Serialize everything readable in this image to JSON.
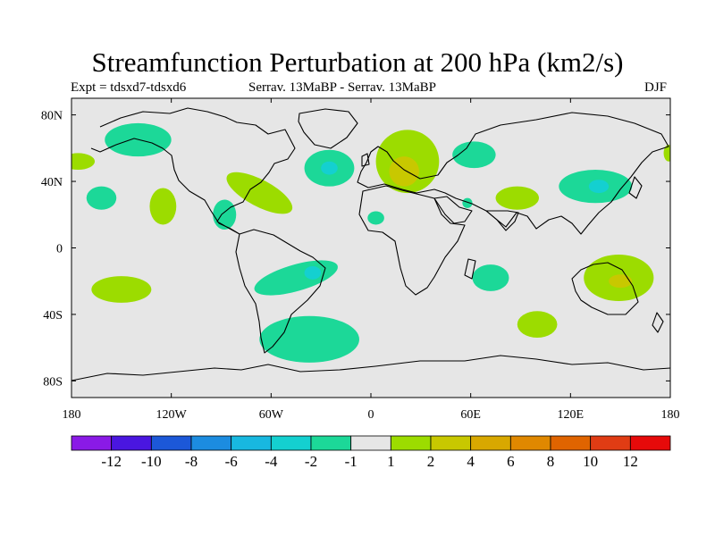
{
  "title": "Streamfunction Perturbation at 200 hPa (km2/s)",
  "subtitle_left": "Expt = tdsxd7-tdsxd6",
  "subtitle_center": "Serrav.   13MaBP - Serrav.   13MaBP",
  "subtitle_right": "DJF",
  "chart_data": {
    "type": "heatmap",
    "title": "Streamfunction Perturbation at 200 hPa (km2/s)",
    "map": "world, cylindrical equidistant",
    "xlim": [
      -180,
      180
    ],
    "ylim": [
      -90,
      90
    ],
    "x_ticks": [
      {
        "lon": -180,
        "label": "180"
      },
      {
        "lon": -120,
        "label": "120W"
      },
      {
        "lon": -60,
        "label": "60W"
      },
      {
        "lon": 0,
        "label": "0"
      },
      {
        "lon": 60,
        "label": "60E"
      },
      {
        "lon": 120,
        "label": "120E"
      },
      {
        "lon": 180,
        "label": "180"
      }
    ],
    "y_ticks": [
      {
        "lat": 80,
        "label": "80N"
      },
      {
        "lat": 40,
        "label": "40N"
      },
      {
        "lat": 0,
        "label": "0"
      },
      {
        "lat": -40,
        "label": "40S"
      },
      {
        "lat": -80,
        "label": "80S"
      }
    ],
    "colorbar": {
      "colors": [
        "#8a1ae6",
        "#4a16e0",
        "#1c58d8",
        "#1c8ce0",
        "#18b8e0",
        "#14d0d0",
        "#1cd898",
        "#e6e6e6",
        "#9cdc00",
        "#c8c800",
        "#d8a800",
        "#e08800",
        "#e06400",
        "#e03c14",
        "#e60a0a"
      ],
      "labels": [
        "-12",
        "-10",
        "-8",
        "-6",
        "-4",
        "-2",
        "-1",
        "1",
        "2",
        "4",
        "6",
        "8",
        "10",
        "12"
      ]
    },
    "anomalies": [
      {
        "lon": -140,
        "lat": 65,
        "rlon": 20,
        "rlat": 10,
        "level": -1
      },
      {
        "lon": -176,
        "lat": 52,
        "rlon": 10,
        "rlat": 5,
        "level": 1
      },
      {
        "lon": -162,
        "lat": 30,
        "rlon": 9,
        "rlat": 7,
        "level": -1
      },
      {
        "lon": -125,
        "lat": 25,
        "rlon": 8,
        "rlat": 11,
        "level": 1
      },
      {
        "lon": -88,
        "lat": 20,
        "rlon": 7,
        "rlat": 9,
        "level": -1
      },
      {
        "lon": -67,
        "lat": 33,
        "rlon": 22,
        "rlat": 8,
        "level": 1,
        "rot": 28
      },
      {
        "lon": -25,
        "lat": 48,
        "rlon": 15,
        "rlat": 11,
        "level": -1
      },
      {
        "lon": -25,
        "lat": 48,
        "rlon": 5,
        "rlat": 4,
        "level": -2
      },
      {
        "lon": 3,
        "lat": 18,
        "rlon": 5,
        "rlat": 4,
        "level": -1
      },
      {
        "lon": 22,
        "lat": 52,
        "rlon": 19,
        "rlat": 19,
        "level": 1
      },
      {
        "lon": 20,
        "lat": 46,
        "rlon": 9,
        "rlat": 9,
        "level": 2
      },
      {
        "lon": 62,
        "lat": 56,
        "rlon": 13,
        "rlat": 8,
        "level": -1
      },
      {
        "lon": 88,
        "lat": 30,
        "rlon": 13,
        "rlat": 7,
        "level": 1
      },
      {
        "lon": 135,
        "lat": 37,
        "rlon": 22,
        "rlat": 10,
        "level": -1
      },
      {
        "lon": 137,
        "lat": 37,
        "rlon": 6,
        "rlat": 4,
        "level": -2
      },
      {
        "lon": 179,
        "lat": 57,
        "rlon": 3,
        "rlat": 5,
        "level": 1
      },
      {
        "lon": -150,
        "lat": -25,
        "rlon": 18,
        "rlat": 8,
        "level": 1
      },
      {
        "lon": -45,
        "lat": -18,
        "rlon": 26,
        "rlat": 8,
        "level": -1,
        "rot": -16
      },
      {
        "lon": -35,
        "lat": -15,
        "rlon": 5,
        "rlat": 4,
        "level": -2
      },
      {
        "lon": 72,
        "lat": -18,
        "rlon": 11,
        "rlat": 8,
        "level": -1
      },
      {
        "lon": 100,
        "lat": -46,
        "rlon": 12,
        "rlat": 8,
        "level": 1
      },
      {
        "lon": 149,
        "lat": -18,
        "rlon": 21,
        "rlat": 14,
        "level": 1
      },
      {
        "lon": 150,
        "lat": -20,
        "rlon": 7,
        "rlat": 4,
        "level": 2
      },
      {
        "lon": -37,
        "lat": -55,
        "rlon": 30,
        "rlat": 14,
        "level": -1
      },
      {
        "lon": 58,
        "lat": 27,
        "rlon": 3,
        "rlat": 3,
        "level": -1
      }
    ]
  }
}
